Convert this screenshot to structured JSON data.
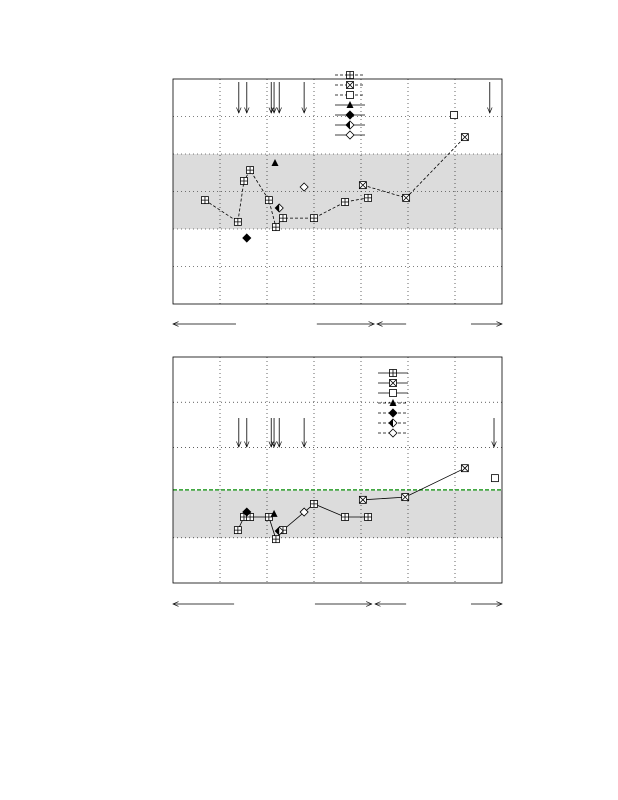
{
  "chart_data": [
    {
      "type": "line",
      "xlim": [
        0,
        7
      ],
      "ylim": [
        0,
        6
      ],
      "xticks": [
        1,
        2,
        3,
        4,
        5,
        6
      ],
      "yticks": [
        1,
        2,
        3,
        4,
        5
      ],
      "grid": true,
      "shade": [
        2,
        4
      ],
      "arrows_x": [
        1.4,
        1.57,
        2.09,
        2.15,
        2.26,
        2.79,
        6.74
      ],
      "ranges": [
        [
          1.34,
          0
        ],
        [
          3.06,
          4.28
        ],
        [
          4.96,
          4.34
        ],
        [
          6.34,
          7.0
        ]
      ],
      "series": [
        {
          "marker": "boxplus",
          "dash": true,
          "color": "#000",
          "x": [
            0.68,
            1.38,
            1.51,
            1.64,
            2.04,
            2.19,
            2.34,
            3.0,
            3.66,
            4.15
          ],
          "values": [
            2.77,
            2.19,
            3.28,
            3.57,
            2.77,
            2.05,
            2.29,
            2.29,
            2.72,
            2.83
          ]
        },
        {
          "marker": "boxx",
          "dash": true,
          "color": "#000",
          "x": [
            4.04,
            4.96,
            6.21
          ],
          "values": [
            3.17,
            2.83,
            4.45
          ]
        },
        {
          "marker": "square",
          "dash": true,
          "color": "#000",
          "x": [
            5.98
          ],
          "values": [
            5.04
          ]
        },
        {
          "marker": "triangle",
          "dash": false,
          "color": "#000",
          "x": [
            2.17
          ],
          "values": [
            3.76
          ]
        },
        {
          "marker": "diamond",
          "dash": false,
          "color": "#000",
          "x": [
            1.57
          ],
          "values": [
            1.76
          ]
        },
        {
          "marker": "halfdiamond",
          "dash": false,
          "color": "#000",
          "x": [
            2.26
          ],
          "values": [
            2.56
          ]
        },
        {
          "marker": "opendiamond",
          "dash": false,
          "color": "#000",
          "x": [
            2.79
          ],
          "values": [
            3.12
          ]
        }
      ]
    },
    {
      "type": "line",
      "xlim": [
        0,
        7
      ],
      "ylim": [
        0,
        5
      ],
      "xticks": [
        1,
        2,
        3,
        4,
        5,
        6
      ],
      "yticks": [
        1,
        3,
        4
      ],
      "grid": true,
      "shade": [
        1,
        2.05
      ],
      "hline": {
        "value": 2.06,
        "color": "#2a9d2a"
      },
      "arrows_x": [
        1.4,
        1.57,
        2.09,
        2.15,
        2.26,
        2.79,
        6.83
      ],
      "ranges": [
        [
          1.3,
          0
        ],
        [
          3.02,
          4.23
        ],
        [
          4.96,
          4.3
        ],
        [
          6.34,
          7.0
        ]
      ],
      "series": [
        {
          "marker": "boxplus",
          "dash": false,
          "color": "#000",
          "x": [
            1.38,
            1.51,
            1.64,
            2.04,
            2.19,
            2.34,
            3.0,
            3.66,
            4.15
          ],
          "values": [
            1.17,
            1.46,
            1.46,
            1.46,
            0.97,
            1.17,
            1.75,
            1.46,
            1.46
          ]
        },
        {
          "marker": "boxx",
          "dash": false,
          "color": "#000",
          "x": [
            4.04,
            4.94,
            6.21
          ],
          "values": [
            1.84,
            1.9,
            2.54
          ]
        },
        {
          "marker": "square",
          "dash": false,
          "color": "#000",
          "x": [
            6.85
          ],
          "values": [
            2.32
          ]
        },
        {
          "marker": "triangle",
          "dash": true,
          "color": "#000",
          "x": [
            2.15
          ],
          "values": [
            1.53
          ]
        },
        {
          "marker": "diamond",
          "dash": true,
          "color": "#000",
          "x": [
            1.57
          ],
          "values": [
            1.57
          ]
        },
        {
          "marker": "halfdiamond",
          "dash": true,
          "color": "#000",
          "x": [
            2.26
          ],
          "values": [
            1.15
          ]
        },
        {
          "marker": "opendiamond",
          "dash": true,
          "color": "#000",
          "x": [
            2.79
          ],
          "values": [
            1.57
          ]
        }
      ]
    }
  ]
}
